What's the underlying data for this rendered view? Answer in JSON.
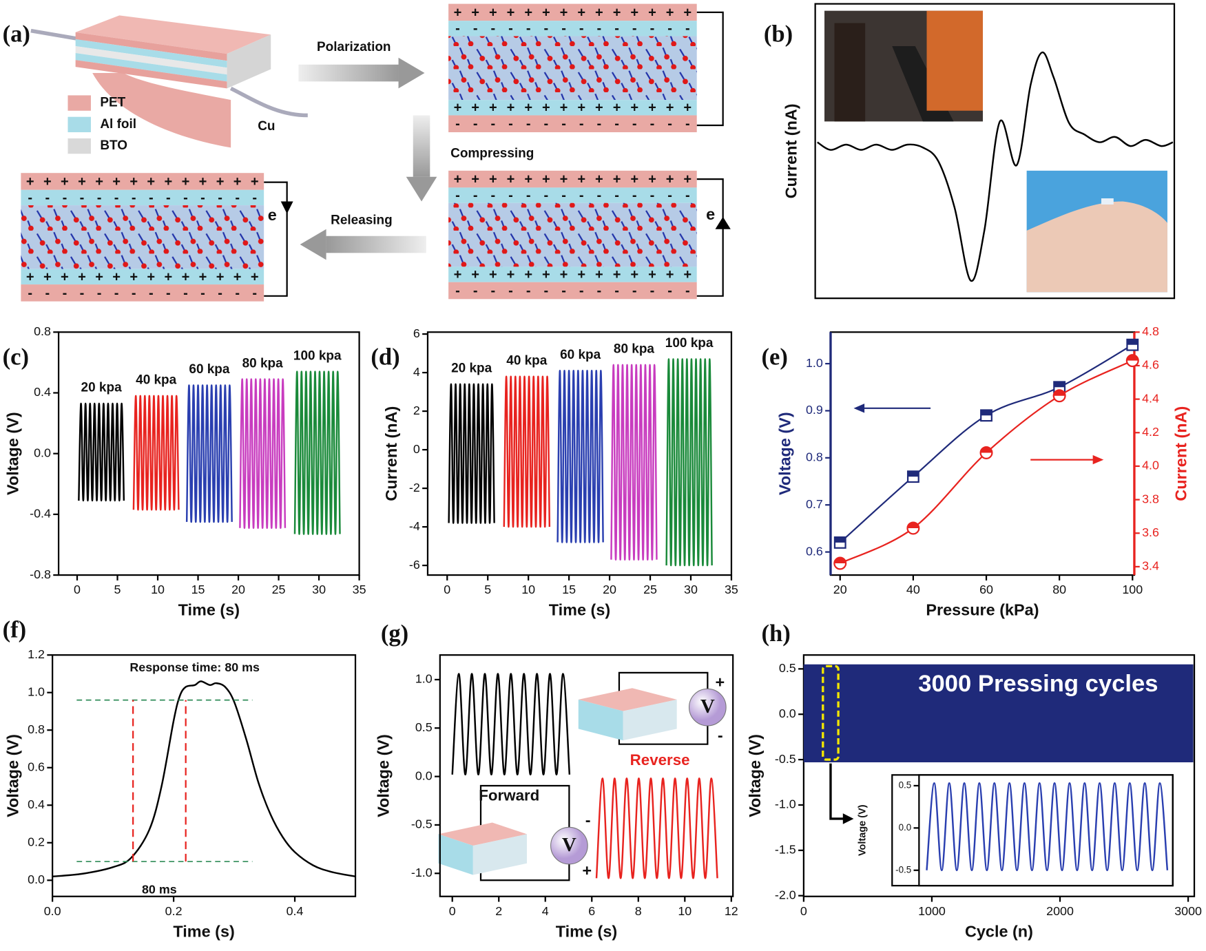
{
  "diagram": {
    "panel": "(a)",
    "legend": [
      "PET",
      "Al foil",
      "BTO"
    ],
    "wire": "Cu",
    "steps": [
      "Polarization",
      "Compressing",
      "Releasing"
    ],
    "electron": "e",
    "plus": "+",
    "minus": "-"
  },
  "chart_data": [
    {
      "panel": "(b)",
      "type": "line",
      "ylabel": "Current (nA)",
      "xlim": [
        0,
        100
      ],
      "ylim": [
        0,
        100
      ],
      "series": [
        {
          "color": "#000000",
          "x": [
            0.6,
            4.3,
            8.6,
            12.8,
            17,
            21.4,
            25.7,
            30,
            34.3,
            38.8,
            43.3,
            47.1,
            51.4,
            56.1,
            60,
            63.2,
            66.4,
            70.7,
            75,
            79.2,
            83.5,
            87.8,
            92,
            96.4,
            99.6
          ],
          "values": [
            53,
            50.4,
            52.2,
            50.4,
            52.2,
            50.4,
            52.2,
            51.2,
            46.5,
            30.8,
            6,
            23,
            60,
            45.2,
            72.6,
            83.5,
            75,
            59.5,
            55.6,
            53,
            54.8,
            51.7,
            53.8,
            51.7,
            53
          ]
        }
      ]
    },
    {
      "panel": "(c)",
      "type": "line",
      "xlabel": "Time (s)",
      "ylabel": "Voltage (V)",
      "xlim": [
        -2.3,
        35
      ],
      "ylim": [
        -0.8,
        0.8
      ],
      "xticks": [
        0,
        5,
        10,
        15,
        20,
        25,
        30,
        35
      ],
      "yticks": [
        -0.8,
        -0.4,
        {
          "value": 0,
          "label": "0.0"
        },
        0.4,
        0.8
      ],
      "series": [
        {
          "name": "20 kpa",
          "color": "#000000",
          "x": [
            0.2,
            0.48,
            0.76,
            1.04,
            1.32,
            1.6,
            1.88,
            2.16,
            2.44,
            2.72,
            3,
            3.28,
            3.56,
            3.84,
            4.12,
            4.4,
            4.68,
            4.96,
            5.24,
            5.52,
            5.8
          ],
          "values": [
            -0.31,
            0.33,
            -0.31,
            0.33,
            -0.31,
            0.33,
            -0.31,
            0.33,
            -0.31,
            0.33,
            -0.31,
            0.33,
            -0.31,
            0.33,
            -0.31,
            0.33,
            -0.31,
            0.33,
            -0.31,
            0.33,
            -0.31
          ]
        },
        {
          "name": "40 kpa",
          "color": "#e8231f",
          "x": [
            7,
            7.28,
            7.56,
            7.84,
            8.12,
            8.4,
            8.68,
            8.96,
            9.24,
            9.52,
            9.8,
            10.08,
            10.36,
            10.64,
            10.92,
            11.2,
            11.48,
            11.76,
            12.04,
            12.32,
            12.6
          ],
          "values": [
            -0.37,
            0.38,
            -0.37,
            0.38,
            -0.37,
            0.38,
            -0.37,
            0.38,
            -0.37,
            0.38,
            -0.37,
            0.38,
            -0.37,
            0.38,
            -0.37,
            0.38,
            -0.37,
            0.38,
            -0.37,
            0.38,
            -0.37
          ]
        },
        {
          "name": "60 kpa",
          "color": "#2a3fb0",
          "x": [
            13.6,
            13.88,
            14.16,
            14.44,
            14.72,
            15,
            15.28,
            15.56,
            15.84,
            16.12,
            16.4,
            16.68,
            16.96,
            17.24,
            17.52,
            17.8,
            18.08,
            18.36,
            18.64,
            18.92,
            19.2
          ],
          "values": [
            -0.45,
            0.45,
            -0.45,
            0.45,
            -0.45,
            0.45,
            -0.45,
            0.45,
            -0.45,
            0.45,
            -0.45,
            0.45,
            -0.45,
            0.45,
            -0.45,
            0.45,
            -0.45,
            0.45,
            -0.45,
            0.45,
            -0.45
          ]
        },
        {
          "name": "80 kpa",
          "color": "#c83cbf",
          "x": [
            20.2,
            20.48,
            20.76,
            21.04,
            21.32,
            21.6,
            21.88,
            22.16,
            22.44,
            22.72,
            23,
            23.28,
            23.56,
            23.84,
            24.12,
            24.4,
            24.68,
            24.96,
            25.24,
            25.52,
            25.8
          ],
          "values": [
            -0.49,
            0.49,
            -0.49,
            0.49,
            -0.49,
            0.49,
            -0.49,
            0.49,
            -0.49,
            0.49,
            -0.49,
            0.49,
            -0.49,
            0.49,
            -0.49,
            0.49,
            -0.49,
            0.49,
            -0.49,
            0.49,
            -0.49
          ]
        },
        {
          "name": "100 kpa",
          "color": "#1a8a3a",
          "x": [
            27,
            27.28,
            27.56,
            27.84,
            28.12,
            28.4,
            28.68,
            28.96,
            29.24,
            29.52,
            29.8,
            30.08,
            30.36,
            30.64,
            30.92,
            31.2,
            31.48,
            31.76,
            32.04,
            32.32,
            32.6
          ],
          "values": [
            -0.53,
            0.54,
            -0.53,
            0.54,
            -0.53,
            0.54,
            -0.53,
            0.54,
            -0.53,
            0.54,
            -0.53,
            0.54,
            -0.53,
            0.54,
            -0.53,
            0.54,
            -0.53,
            0.54,
            -0.53,
            0.54,
            -0.53
          ]
        }
      ]
    },
    {
      "panel": "(d)",
      "type": "line",
      "xlabel": "Time (s)",
      "ylabel": "Current (nA)",
      "xlim": [
        -2.4,
        35
      ],
      "ylim": [
        -6.5,
        6.1
      ],
      "xticks": [
        0,
        5,
        10,
        15,
        20,
        25,
        30,
        35
      ],
      "yticks": [
        -6,
        -4,
        -2,
        0,
        2,
        4,
        6
      ],
      "series": [
        {
          "name": "20 kpa",
          "color": "#000000",
          "x": [
            0.2,
            0.48,
            0.76,
            1.04,
            1.32,
            1.6,
            1.88,
            2.16,
            2.44,
            2.72,
            3,
            3.28,
            3.56,
            3.84,
            4.12,
            4.4,
            4.68,
            4.96,
            5.24,
            5.52,
            5.8
          ],
          "values": [
            -3.8,
            3.4,
            -3.8,
            3.4,
            -3.8,
            3.4,
            -3.8,
            3.4,
            -3.8,
            3.4,
            -3.8,
            3.4,
            -3.8,
            3.4,
            -3.8,
            3.4,
            -3.8,
            3.4,
            -3.8,
            3.4,
            -3.8
          ]
        },
        {
          "name": "40 kpa",
          "color": "#e8231f",
          "x": [
            7,
            7.28,
            7.56,
            7.84,
            8.12,
            8.4,
            8.68,
            8.96,
            9.24,
            9.52,
            9.8,
            10.08,
            10.36,
            10.64,
            10.92,
            11.2,
            11.48,
            11.76,
            12.04,
            12.32,
            12.6
          ],
          "values": [
            -4,
            3.8,
            -4,
            3.8,
            -4,
            3.8,
            -4,
            3.8,
            -4,
            3.8,
            -4,
            3.8,
            -4,
            3.8,
            -4,
            3.8,
            -4,
            3.8,
            -4,
            3.8,
            -4
          ]
        },
        {
          "name": "60 kpa",
          "color": "#2a3fb0",
          "x": [
            13.6,
            13.88,
            14.16,
            14.44,
            14.72,
            15,
            15.28,
            15.56,
            15.84,
            16.12,
            16.4,
            16.68,
            16.96,
            17.24,
            17.52,
            17.8,
            18.08,
            18.36,
            18.64,
            18.92,
            19.2
          ],
          "values": [
            -4.8,
            4.1,
            -4.8,
            4.1,
            -4.8,
            4.1,
            -4.8,
            4.1,
            -4.8,
            4.1,
            -4.8,
            4.1,
            -4.8,
            4.1,
            -4.8,
            4.1,
            -4.8,
            4.1,
            -4.8,
            4.1,
            -4.8
          ]
        },
        {
          "name": "80 kpa",
          "color": "#c83cbf",
          "x": [
            20.2,
            20.48,
            20.76,
            21.04,
            21.32,
            21.6,
            21.88,
            22.16,
            22.44,
            22.72,
            23,
            23.28,
            23.56,
            23.84,
            24.12,
            24.4,
            24.68,
            24.96,
            25.24,
            25.52,
            25.8
          ],
          "values": [
            -5.7,
            4.4,
            -5.7,
            4.4,
            -5.7,
            4.4,
            -5.7,
            4.4,
            -5.7,
            4.4,
            -5.7,
            4.4,
            -5.7,
            4.4,
            -5.7,
            4.4,
            -5.7,
            4.4,
            -5.7,
            4.4,
            -5.7
          ]
        },
        {
          "name": "100 kpa",
          "color": "#1a8a3a",
          "x": [
            27,
            27.28,
            27.56,
            27.84,
            28.12,
            28.4,
            28.68,
            28.96,
            29.24,
            29.52,
            29.8,
            30.08,
            30.36,
            30.64,
            30.92,
            31.2,
            31.48,
            31.76,
            32.04,
            32.32,
            32.6
          ],
          "values": [
            -6,
            4.7,
            -6,
            4.7,
            -6,
            4.7,
            -6,
            4.7,
            -6,
            4.7,
            -6,
            4.7,
            -6,
            4.7,
            -6,
            4.7,
            -6,
            4.7,
            -6,
            4.7,
            -6
          ]
        }
      ]
    },
    {
      "panel": "(e)",
      "type": "line",
      "xlabel": "Pressure (kPa)",
      "ylabel": "Voltage (V)",
      "y2label": "Current (nA)",
      "xlim": [
        17.4,
        100.5
      ],
      "ylim": [
        0.551,
        1.067
      ],
      "y2lim": [
        3.35,
        4.8
      ],
      "xticks": [
        20,
        40,
        60,
        80,
        100
      ],
      "yticks": [
        0.6,
        0.7,
        0.8,
        0.9,
        {
          "value": 1,
          "label": "1.0"
        }
      ],
      "y2ticks": [
        3.4,
        3.6,
        3.8,
        {
          "value": 4,
          "label": "4.0"
        },
        4.2,
        4.4,
        4.6,
        4.8
      ],
      "series": [
        {
          "color": "#1f2a7a",
          "marker": "square",
          "x": [
            20,
            40,
            60,
            80,
            100
          ],
          "values": [
            0.62,
            0.76,
            0.89,
            0.95,
            1.04
          ]
        },
        {
          "color": "#e8231f",
          "marker": "circle",
          "axis": "y2",
          "x": [
            20,
            40,
            60,
            80,
            100
          ],
          "values": [
            3.42,
            3.63,
            4.08,
            4.42,
            4.63
          ]
        }
      ]
    },
    {
      "panel": "(f)",
      "type": "line",
      "xlabel": "Time (s)",
      "ylabel": "Voltage (V)",
      "xlim": [
        0,
        0.5
      ],
      "ylim": [
        -0.086,
        1.2
      ],
      "xticks": [
        {
          "value": 0,
          "label": "0.0"
        },
        0.2,
        0.4
      ],
      "yticks": [
        {
          "value": 0,
          "label": "0.0"
        },
        0.2,
        0.4,
        0.6,
        0.8,
        {
          "value": 1,
          "label": "1.0"
        },
        1.2
      ],
      "hlines": [
        0.1,
        0.96
      ],
      "vlines": [
        0.133,
        0.22
      ],
      "annotations": [
        "Response time: 80 ms",
        "80 ms"
      ],
      "series": [
        {
          "color": "#000000",
          "x": [
            0,
            0.05,
            0.1,
            0.13,
            0.16,
            0.18,
            0.2,
            0.21,
            0.22,
            0.235,
            0.245,
            0.26,
            0.27,
            0.285,
            0.3,
            0.32,
            0.34,
            0.36,
            0.38,
            0.4,
            0.43,
            0.46,
            0.5
          ],
          "values": [
            0.02,
            0.035,
            0.07,
            0.12,
            0.27,
            0.5,
            0.85,
            0.98,
            1.03,
            1.04,
            1.06,
            1.04,
            1.05,
            1.03,
            0.95,
            0.75,
            0.52,
            0.35,
            0.23,
            0.15,
            0.08,
            0.045,
            0.02
          ]
        }
      ]
    },
    {
      "panel": "(g)",
      "type": "line",
      "xlabel": "Time (s)",
      "ylabel": "Voltage (V)",
      "xlim": [
        -0.53,
        12.07
      ],
      "ylim": [
        -1.238,
        1.254
      ],
      "xticks": [
        0,
        2,
        4,
        6,
        8,
        10,
        12
      ],
      "yticks": [
        {
          "value": -1,
          "label": "-1.0"
        },
        -0.5,
        {
          "value": 0,
          "label": "0.0"
        },
        0.5,
        {
          "value": 1,
          "label": "1.0"
        }
      ],
      "meter": "V",
      "plus": "+",
      "minus": "-",
      "series": [
        {
          "name": "Forward",
          "color": "#000000",
          "x": [
            0,
            0.28,
            0.56,
            0.84,
            1.12,
            1.4,
            1.68,
            1.96,
            2.24,
            2.52,
            2.8,
            3.08,
            3.36,
            3.64,
            3.92,
            4.2,
            4.48,
            4.76,
            5.04
          ],
          "values": [
            0.02,
            1.06,
            0.02,
            1.06,
            0.02,
            1.06,
            0.02,
            1.06,
            0.02,
            1.06,
            0.02,
            1.06,
            0.02,
            1.06,
            0.02,
            1.06,
            0.02,
            1.06,
            0.02
          ]
        },
        {
          "name": "Reverse",
          "color": "#e8231f",
          "x": [
            6.2,
            6.46,
            6.72,
            6.98,
            7.24,
            7.5,
            7.76,
            8.02,
            8.28,
            8.54,
            8.8,
            9.06,
            9.32,
            9.58,
            9.84,
            10.1,
            10.36,
            10.62,
            10.88,
            11.14,
            11.4
          ],
          "values": [
            -1.05,
            -0.02,
            -1.05,
            -0.02,
            -1.05,
            -0.02,
            -1.05,
            -0.02,
            -1.05,
            -0.02,
            -1.05,
            -0.02,
            -1.05,
            -0.02,
            -1.05,
            -0.02,
            -1.05,
            -0.02,
            -1.05,
            -0.02,
            -1.05
          ]
        }
      ]
    },
    {
      "panel": "(h)",
      "type": "area",
      "xlabel": "Cycle (n)",
      "ylabel": "Voltage (V)",
      "xlim": [
        0,
        3048
      ],
      "ylim": [
        -2.008,
        0.653
      ],
      "xticks": [
        0,
        1000,
        2000,
        3000
      ],
      "yticks": [
        {
          "value": -2,
          "label": "-2.0"
        },
        -1.5,
        {
          "value": -1,
          "label": "-1.0"
        },
        -0.5,
        {
          "value": 0,
          "label": "0.0"
        },
        0.5
      ],
      "annotations": [
        "3000 Pressing cycles"
      ],
      "highlight": {
        "x": [
          150,
          270
        ],
        "y": [
          -0.5,
          0.53
        ]
      },
      "series": [
        {
          "color": "#1f2a7a",
          "x": [
            0,
            3040
          ],
          "upper": [
            0.55,
            0.55
          ],
          "lower": [
            -0.53,
            -0.53
          ]
        }
      ],
      "inset": {
        "type": "line",
        "ylabel": "Voltage (V)",
        "xlim": [
          -0.51,
          16.36
        ],
        "ylim": [
          -0.682,
          0.627
        ],
        "yticks": [
          -0.5,
          {
            "value": 0,
            "label": "0.0"
          },
          0.5
        ],
        "series": [
          {
            "color": "#2a3fb0",
            "x": [
              0,
              0.5,
              1,
              1.5,
              2,
              2.5,
              3,
              3.5,
              4,
              4.5,
              5,
              5.5,
              6,
              6.5,
              7,
              7.5,
              8,
              8.5,
              9,
              9.5,
              10,
              10.5,
              11,
              11.5,
              12,
              12.5,
              13,
              13.5,
              14,
              14.5,
              15,
              15.5,
              16
            ],
            "values": [
              -0.5,
              0.53,
              -0.5,
              0.53,
              -0.5,
              0.53,
              -0.5,
              0.53,
              -0.5,
              0.53,
              -0.5,
              0.53,
              -0.5,
              0.53,
              -0.5,
              0.53,
              -0.5,
              0.53,
              -0.5,
              0.53,
              -0.5,
              0.53,
              -0.5,
              0.53,
              -0.5,
              0.53,
              -0.5,
              0.53,
              -0.5,
              0.53,
              -0.5,
              0.53,
              -0.5
            ]
          }
        ]
      }
    }
  ]
}
